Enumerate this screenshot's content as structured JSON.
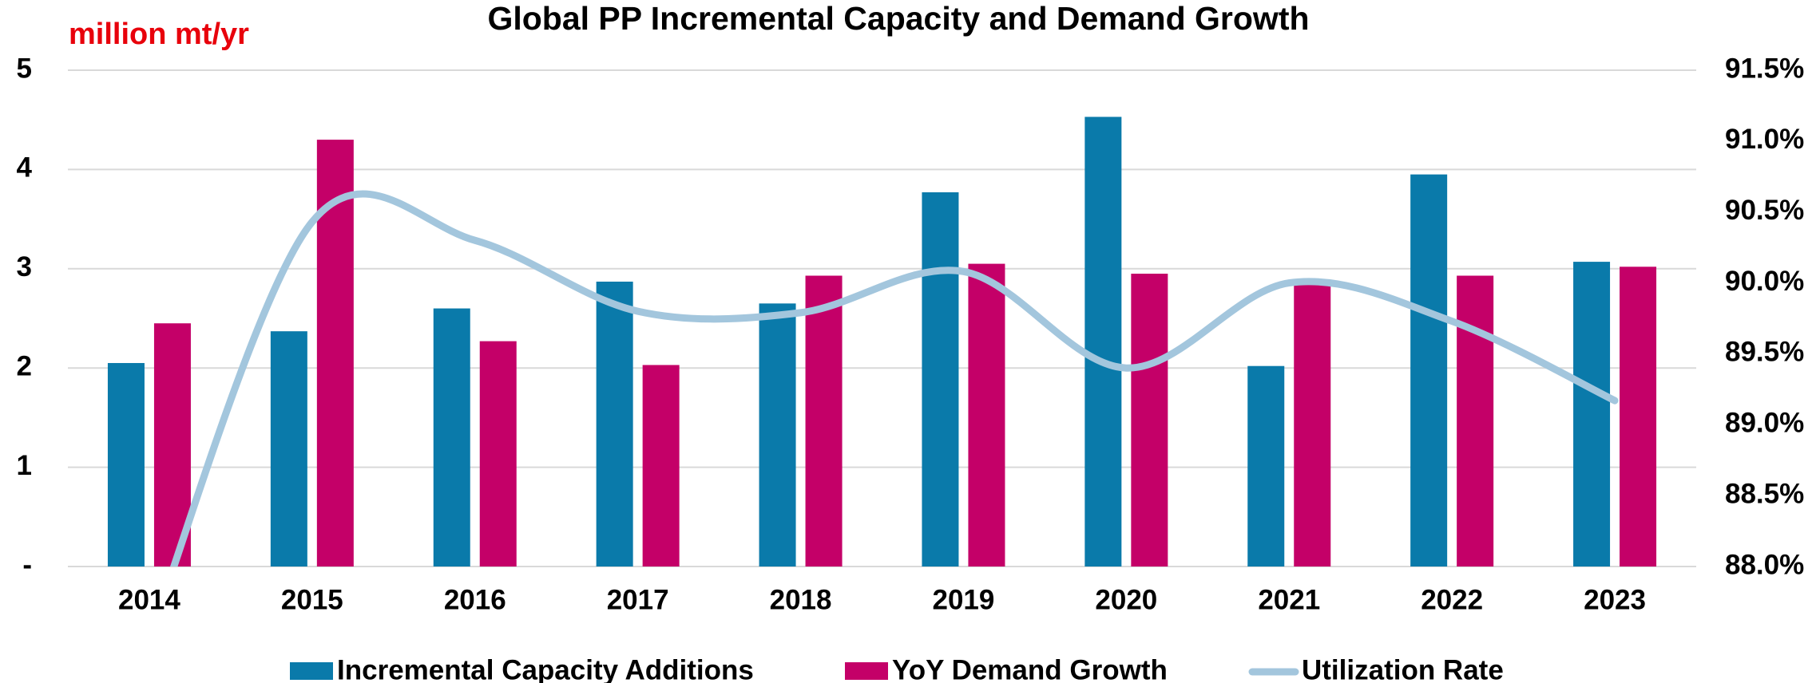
{
  "chart_data": {
    "type": "bar",
    "title": "Global PP Incremental Capacity and Demand Growth",
    "y_label": "million mt/yr",
    "categories": [
      "2014",
      "2015",
      "2016",
      "2017",
      "2018",
      "2019",
      "2020",
      "2021",
      "2022",
      "2023"
    ],
    "series": [
      {
        "name": "Incremental Capacity Additions",
        "color": "#0a7aaa",
        "type": "bar",
        "values": [
          2.05,
          2.37,
          2.6,
          2.87,
          2.65,
          3.77,
          4.53,
          2.02,
          3.95,
          3.07
        ]
      },
      {
        "name": "YoY Demand Growth",
        "color": "#c40068",
        "type": "bar",
        "values": [
          2.45,
          4.3,
          2.27,
          2.03,
          2.93,
          3.05,
          2.95,
          2.85,
          2.93,
          3.02
        ]
      },
      {
        "name": "Utilization Rate",
        "color": "#a3c6dd",
        "type": "line",
        "axis": "y2",
        "values": [
          87.5,
          90.43,
          90.3,
          89.8,
          89.79,
          90.08,
          89.4,
          90.0,
          89.73,
          89.17
        ]
      }
    ],
    "ylim": [
      0,
      5
    ],
    "yticks": [
      {
        "value": 0,
        "label": "-"
      },
      1,
      2,
      3,
      4,
      5
    ],
    "y2lim": [
      88,
      91.5
    ],
    "y2ticks": [
      {
        "value": 88,
        "label": "88.0%"
      },
      {
        "value": 88.5,
        "label": "88.5%"
      },
      {
        "value": 89,
        "label": "89.0%"
      },
      {
        "value": 89.5,
        "label": "89.5%"
      },
      {
        "value": 90,
        "label": "90.0%"
      },
      {
        "value": 90.5,
        "label": "90.5%"
      },
      {
        "value": 91,
        "label": "91.0%"
      },
      {
        "value": 91.5,
        "label": "91.5%"
      }
    ],
    "grid": true,
    "legend": "bottom"
  }
}
